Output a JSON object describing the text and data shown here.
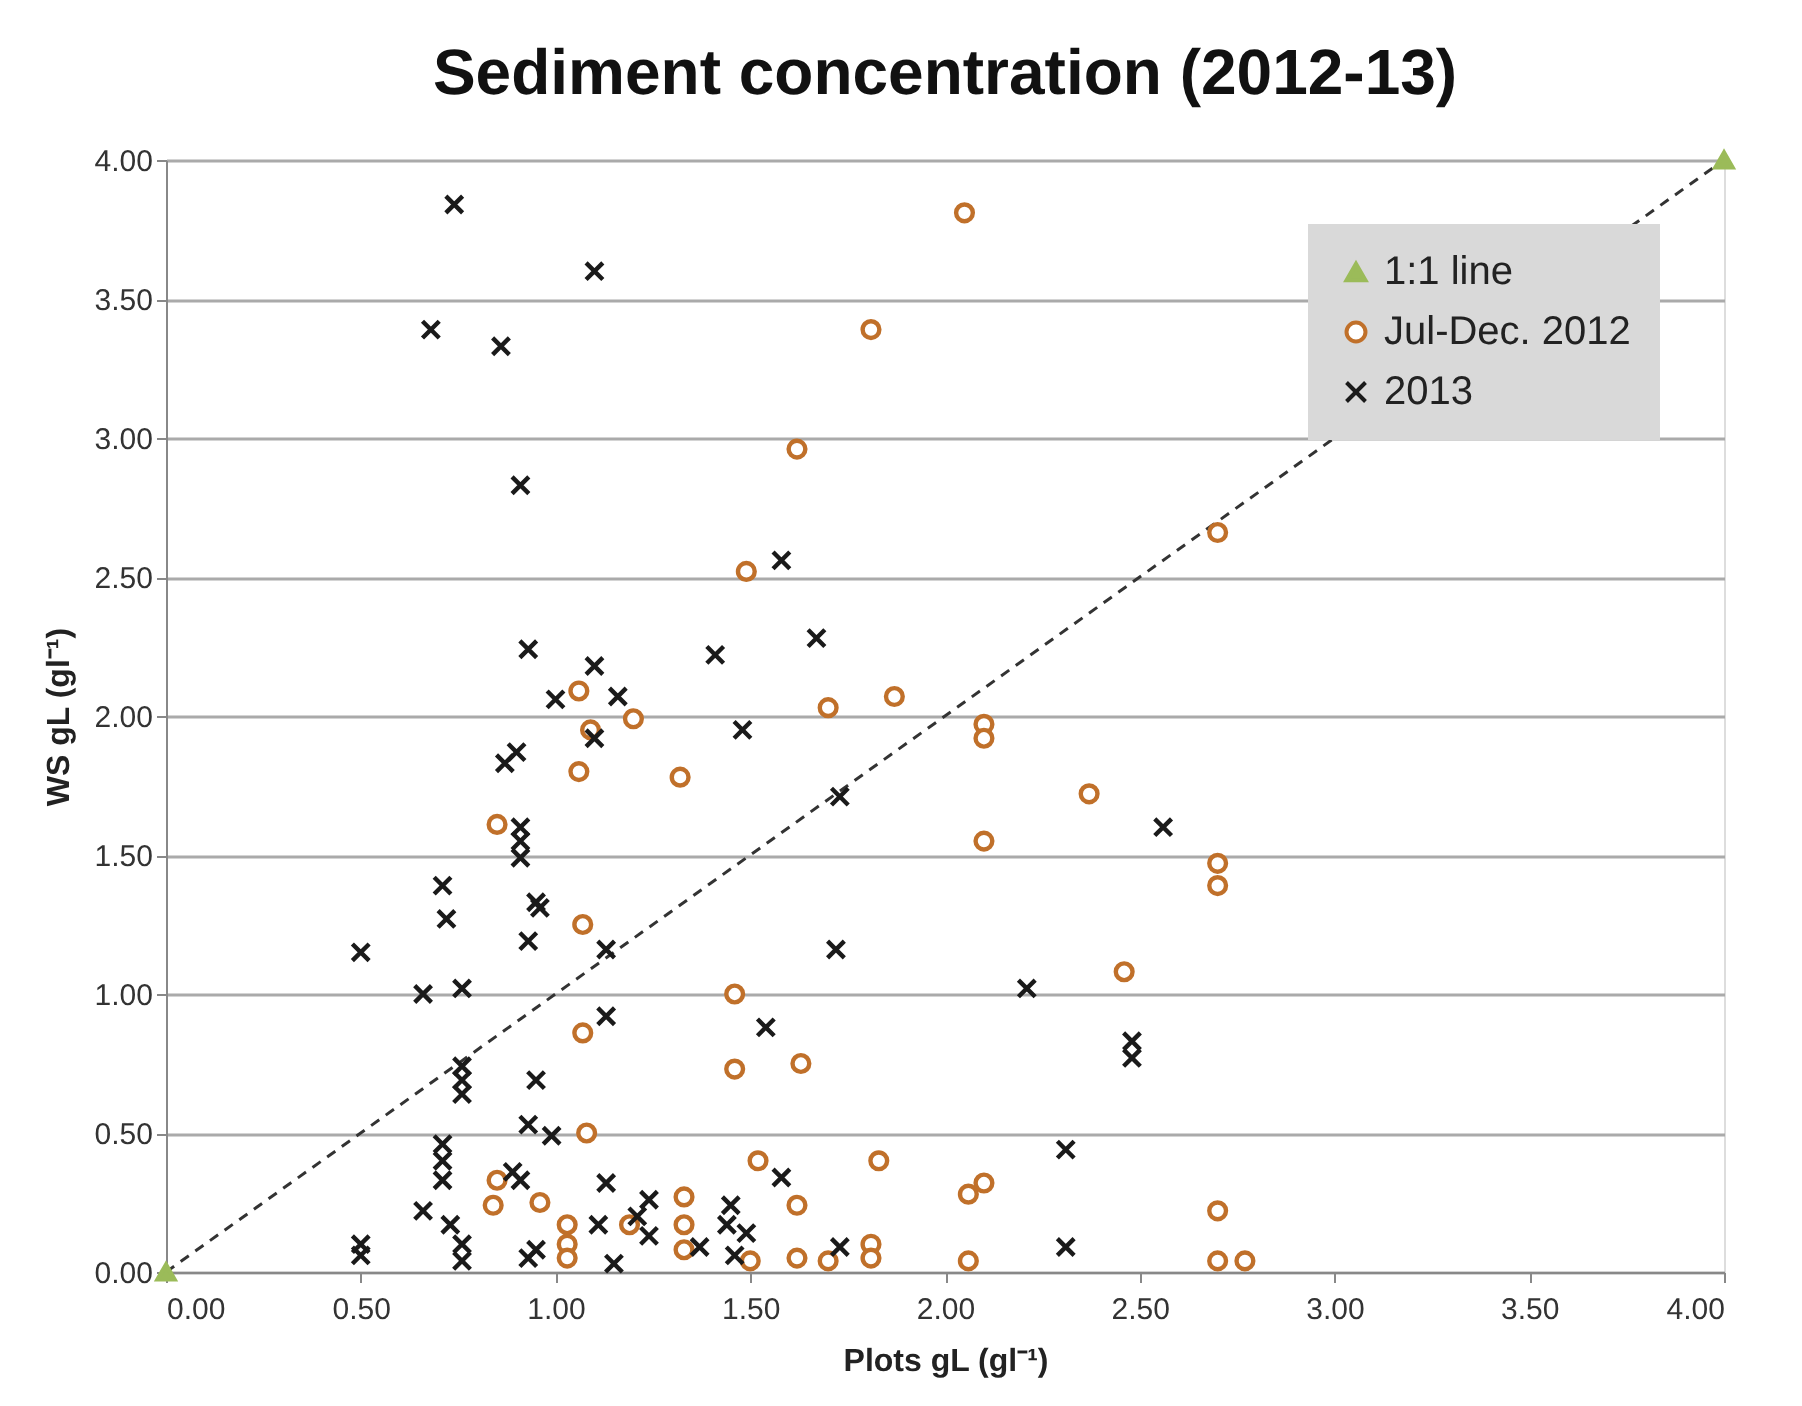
{
  "chart_data": {
    "type": "scatter",
    "title": "Sediment concentration (2012-13)",
    "xlabel": "Plots  gL (gl⁻¹)",
    "ylabel": "WS gL (gl⁻¹)",
    "xlim": [
      0,
      4
    ],
    "ylim": [
      0,
      4
    ],
    "xticks": [
      {
        "value": 0,
        "label": "0.00"
      },
      {
        "value": 0.5,
        "label": "0.50"
      },
      {
        "value": 1,
        "label": "1.00"
      },
      {
        "value": 1.5,
        "label": "1.50"
      },
      {
        "value": 2,
        "label": "2.00"
      },
      {
        "value": 2.5,
        "label": "2.50"
      },
      {
        "value": 3,
        "label": "3.00"
      },
      {
        "value": 3.5,
        "label": "3.50"
      },
      {
        "value": 4,
        "label": "4.00"
      }
    ],
    "yticks": [
      {
        "value": 0,
        "label": "0.00"
      },
      {
        "value": 0.5,
        "label": "0.50"
      },
      {
        "value": 1,
        "label": "1.00"
      },
      {
        "value": 1.5,
        "label": "1.50"
      },
      {
        "value": 2,
        "label": "2.00"
      },
      {
        "value": 2.5,
        "label": "2.50"
      },
      {
        "value": 3,
        "label": "3.00"
      },
      {
        "value": 3.5,
        "label": "3.50"
      },
      {
        "value": 4,
        "label": "4.00"
      }
    ],
    "grid": "y",
    "legend": "top right",
    "series": [
      {
        "name": "1:1 line",
        "type": "line",
        "color": "#333333",
        "colors": [
          "#9bbb59",
          "#9bbb59"
        ],
        "line_style": "dashed",
        "marker": "triangle",
        "x": [
          0,
          4
        ],
        "values": [
          0,
          4
        ]
      },
      {
        "name": "Jul-Dec. 2012",
        "type": "scatter",
        "marker": "circle",
        "color": "#c0702a",
        "x": [
          2.05,
          1.81,
          1.62,
          1.49,
          1.06,
          1.7,
          1.87,
          1.2,
          1.09,
          1.06,
          1.32,
          0.85,
          1.07,
          1.46,
          1.07,
          1.46,
          1.63,
          1.08,
          1.52,
          1.83,
          0.85,
          1.62,
          0.96,
          1.33,
          0.84,
          1.03,
          1.03,
          1.03,
          1.19,
          1.33,
          1.33,
          1.5,
          1.62,
          1.7,
          1.81,
          1.81,
          2.7,
          2.1,
          2.1,
          2.37,
          2.1,
          2.7,
          2.7,
          2.46,
          2.06,
          2.1,
          2.7,
          2.06,
          2.7,
          2.77
        ],
        "values": [
          3.81,
          3.39,
          2.96,
          2.52,
          2.09,
          2.03,
          2.07,
          1.99,
          1.95,
          1.8,
          1.78,
          1.61,
          1.25,
          1.0,
          0.86,
          0.73,
          0.75,
          0.5,
          0.4,
          0.4,
          0.33,
          0.24,
          0.25,
          0.27,
          0.24,
          0.17,
          0.1,
          0.05,
          0.17,
          0.17,
          0.08,
          0.04,
          0.05,
          0.04,
          0.1,
          0.05,
          2.66,
          1.97,
          1.92,
          1.72,
          1.55,
          1.47,
          1.39,
          1.08,
          0.28,
          0.32,
          0.22,
          0.04,
          0.04,
          0.04
        ]
      },
      {
        "name": "2013",
        "type": "scatter",
        "marker": "cross",
        "color": "#1a1a1a",
        "x": [
          0.74,
          1.1,
          0.68,
          0.86,
          0.91,
          1.58,
          0.93,
          1.1,
          1.0,
          1.16,
          1.41,
          1.67,
          1.48,
          1.1,
          0.87,
          0.9,
          1.73,
          0.91,
          0.91,
          0.91,
          0.71,
          0.72,
          0.95,
          0.96,
          0.93,
          1.13,
          0.5,
          1.72,
          0.66,
          0.76,
          1.13,
          1.54,
          0.76,
          0.76,
          0.76,
          0.95,
          0.93,
          0.99,
          0.71,
          0.71,
          0.71,
          1.58,
          0.91,
          0.89,
          1.13,
          1.24,
          0.66,
          1.45,
          0.5,
          0.5,
          0.73,
          0.76,
          0.76,
          0.93,
          0.95,
          1.11,
          1.21,
          1.24,
          1.37,
          1.44,
          1.46,
          1.49,
          1.73,
          1.15,
          2.56,
          2.21,
          2.48,
          2.48,
          2.31,
          2.31
        ],
        "values": [
          3.84,
          3.6,
          3.39,
          3.33,
          2.83,
          2.56,
          2.24,
          2.18,
          2.06,
          2.07,
          2.22,
          2.28,
          1.95,
          1.92,
          1.83,
          1.87,
          1.71,
          1.6,
          1.55,
          1.49,
          1.39,
          1.27,
          1.33,
          1.31,
          1.19,
          1.16,
          1.15,
          1.16,
          1.0,
          1.02,
          0.92,
          0.88,
          0.74,
          0.69,
          0.64,
          0.69,
          0.53,
          0.49,
          0.46,
          0.4,
          0.33,
          0.34,
          0.33,
          0.36,
          0.32,
          0.26,
          0.22,
          0.24,
          0.1,
          0.06,
          0.17,
          0.1,
          0.04,
          0.05,
          0.08,
          0.17,
          0.2,
          0.13,
          0.09,
          0.17,
          0.06,
          0.14,
          0.09,
          0.03,
          1.6,
          1.02,
          0.83,
          0.77,
          0.44,
          0.09
        ]
      }
    ]
  }
}
